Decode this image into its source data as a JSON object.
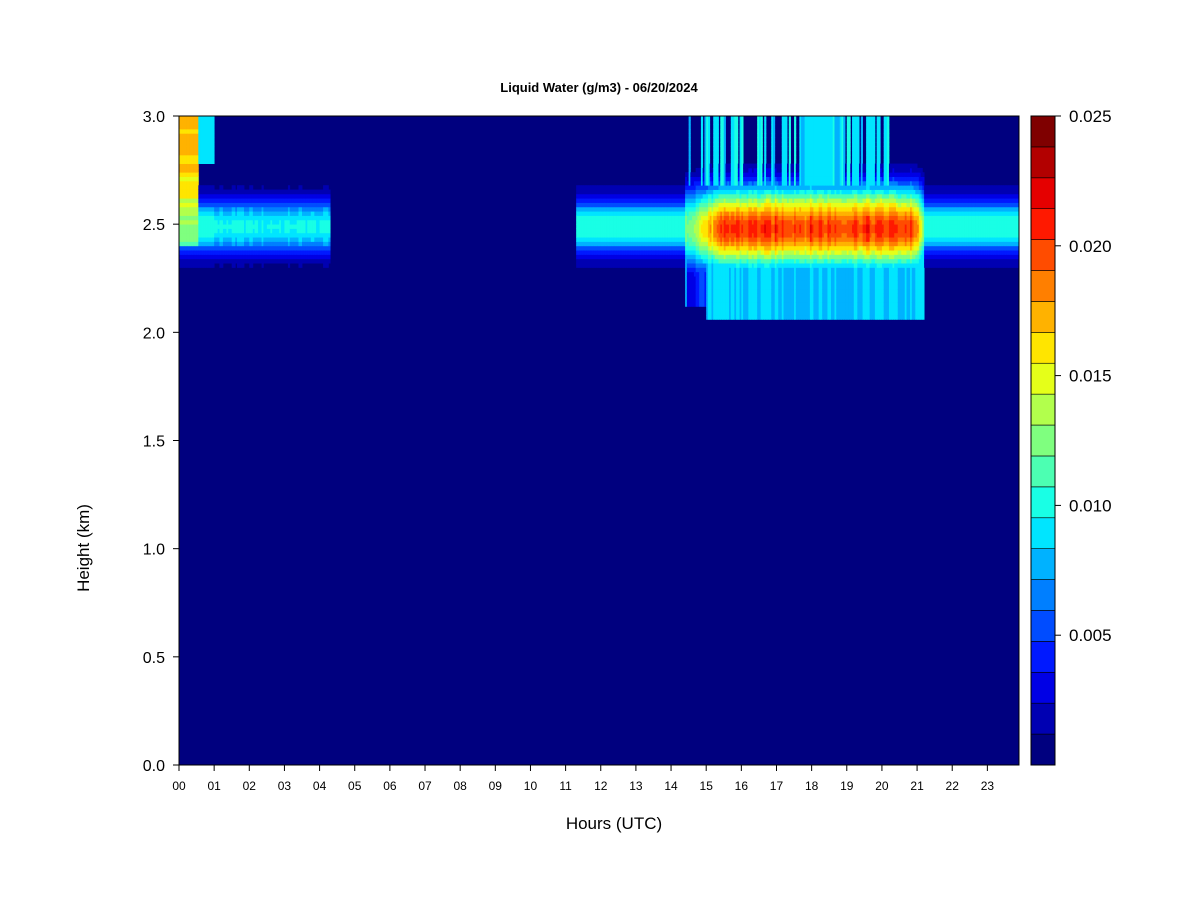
{
  "chart_data": {
    "type": "heatmap",
    "title": "Liquid Water (g/m3) - 06/20/2024",
    "xlabel": "Hours (UTC)",
    "ylabel": "Height (km)",
    "xlim": [
      0,
      23.9
    ],
    "ylim": [
      0,
      3.0
    ],
    "x_ticks": [
      "00",
      "01",
      "02",
      "03",
      "04",
      "05",
      "06",
      "07",
      "08",
      "09",
      "10",
      "11",
      "12",
      "13",
      "14",
      "15",
      "16",
      "17",
      "18",
      "19",
      "20",
      "21",
      "22",
      "23"
    ],
    "y_ticks": [
      "0.0",
      "0.5",
      "1.0",
      "1.5",
      "2.0",
      "2.5",
      "3.0"
    ],
    "colorbar": {
      "min": 0.001,
      "max": 0.025,
      "step": 0.001,
      "tick_labels": [
        "0.005",
        "0.010",
        "0.015",
        "0.020",
        "0.025"
      ],
      "tick_values": [
        0.005,
        0.01,
        0.015,
        0.02,
        0.025
      ],
      "colors": [
        "#00007f",
        "#0000b2",
        "#0000e5",
        "#0019ff",
        "#004cff",
        "#007fff",
        "#00b2ff",
        "#00e5ff",
        "#19ffe5",
        "#4cffb2",
        "#7fff7f",
        "#b2ff4c",
        "#e5ff19",
        "#ffe500",
        "#ffb200",
        "#ff7f00",
        "#ff4c00",
        "#ff1900",
        "#e50000",
        "#b20000",
        "#7f0000"
      ]
    },
    "features": [
      {
        "region": "cloud layer",
        "hours": [
          0.0,
          4.3
        ],
        "height_km": [
          2.25,
          2.7
        ],
        "peak_g_m3": 0.011
      },
      {
        "region": "near-top column",
        "hours": [
          0.0,
          1.0
        ],
        "height_km": [
          2.5,
          3.0
        ],
        "peak_g_m3": 0.016
      },
      {
        "region": "cloud layer",
        "hours": [
          11.3,
          23.9
        ],
        "height_km": [
          2.25,
          2.7
        ],
        "peak_g_m3": 0.011
      },
      {
        "region": "thick cloud core",
        "hours": [
          14.5,
          21.2
        ],
        "height_km": [
          2.05,
          2.65
        ],
        "peak_g_m3": 0.023
      },
      {
        "region": "upper streaks",
        "hours": [
          14.5,
          20.3
        ],
        "height_km": [
          2.65,
          3.0
        ],
        "peak_g_m3": 0.009
      }
    ]
  }
}
